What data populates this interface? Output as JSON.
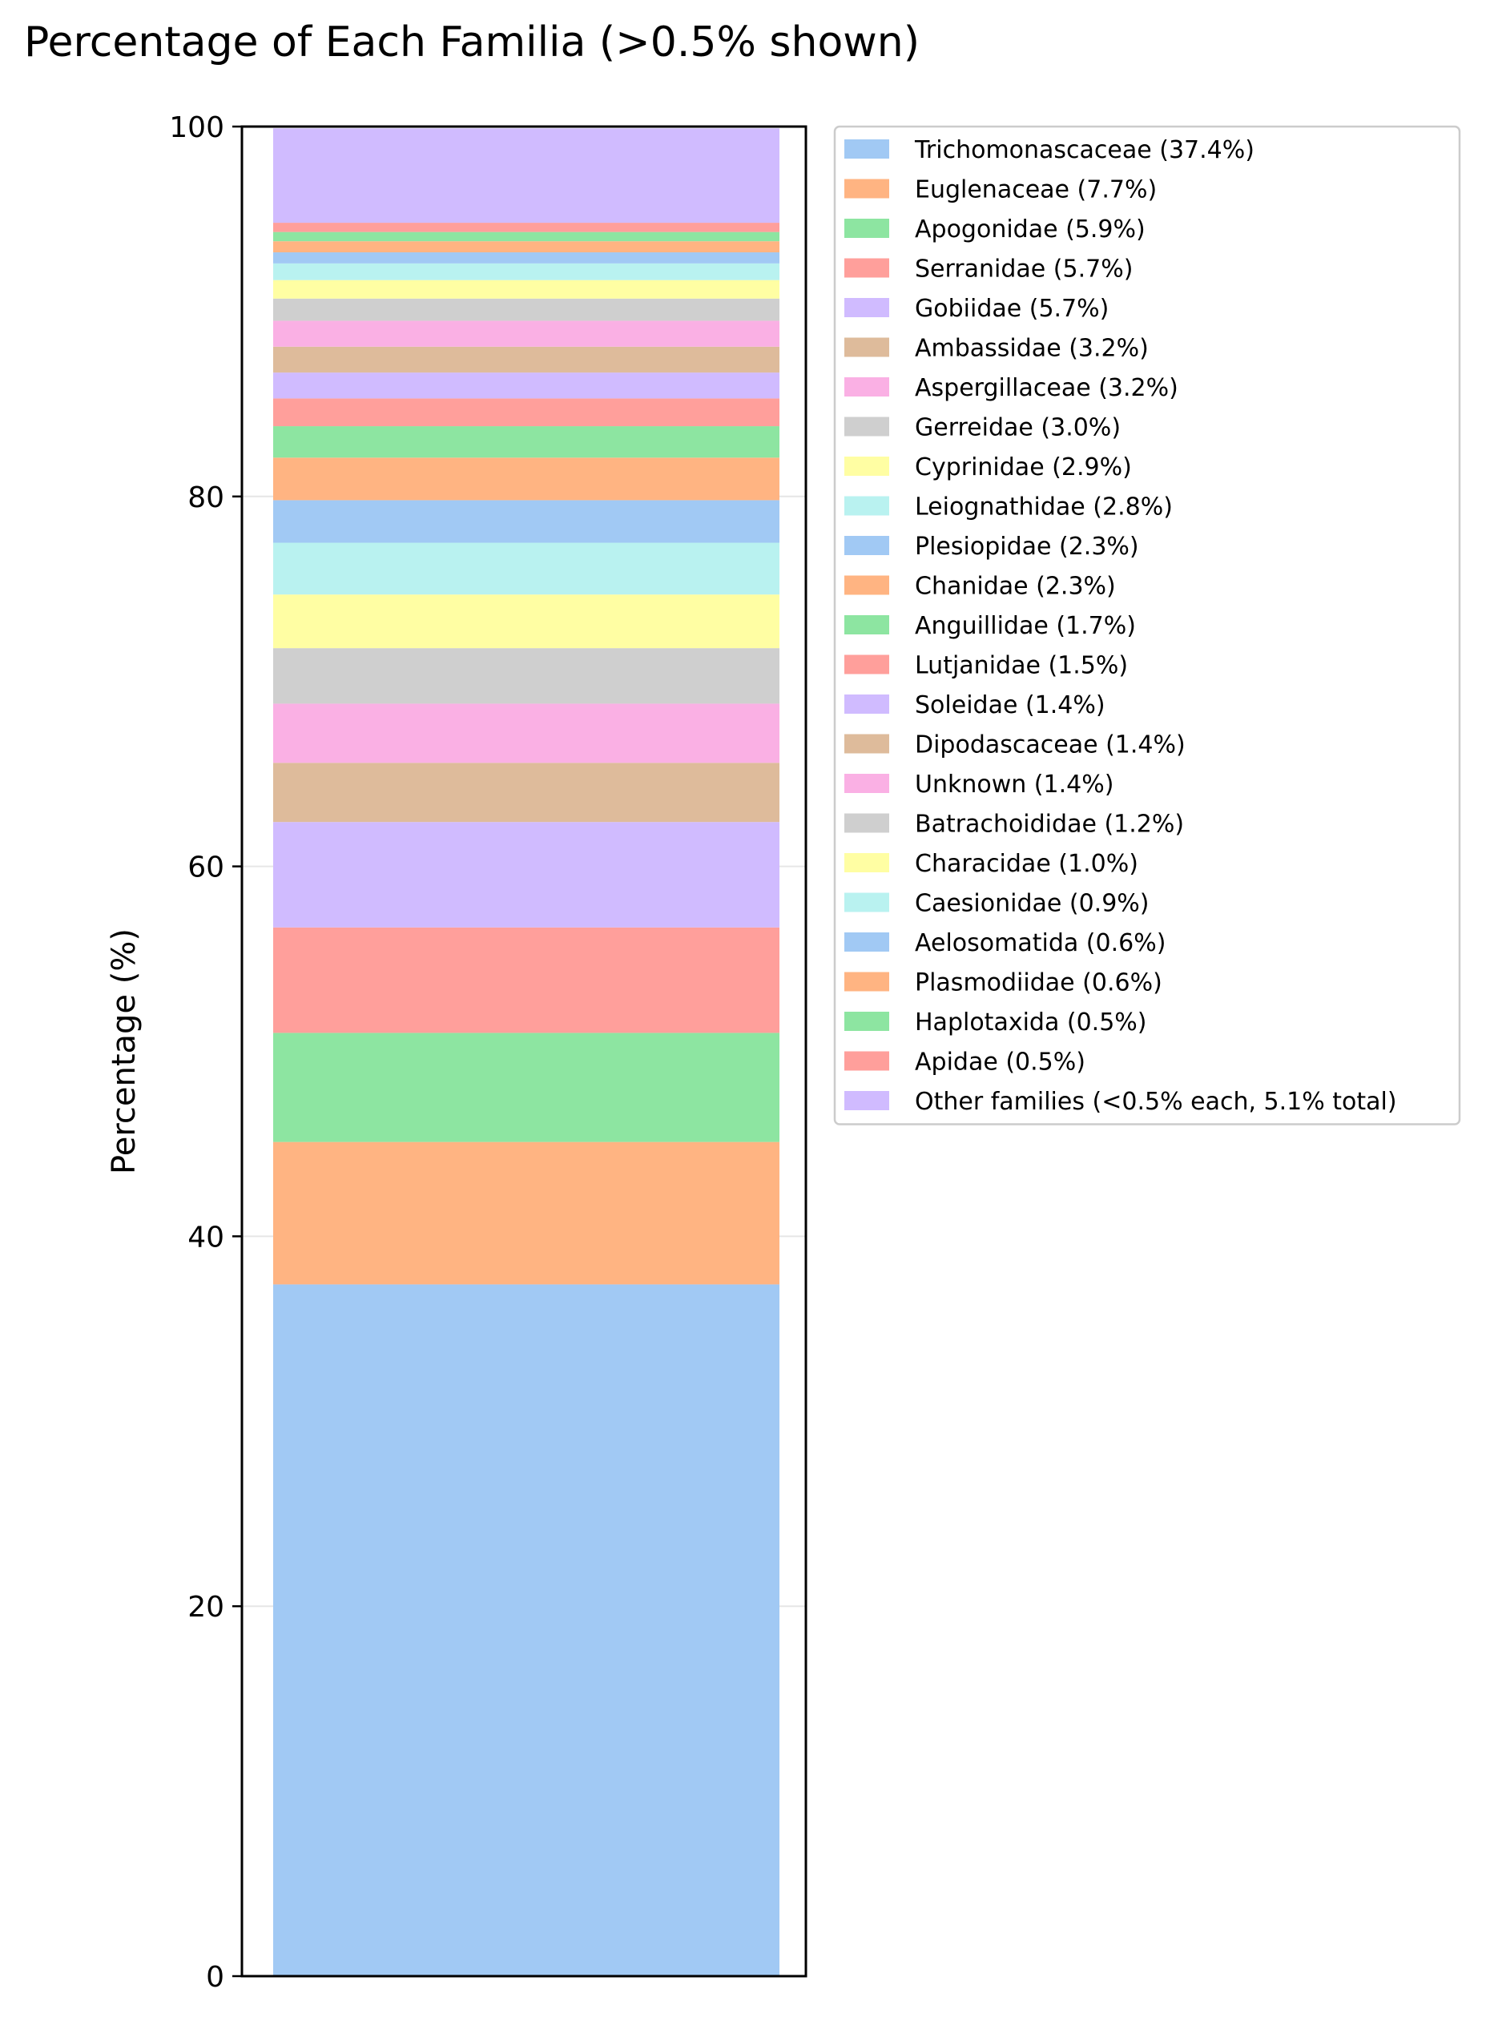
{
  "chart_data": {
    "type": "bar",
    "stacked": true,
    "title": "Percentage of Each Familia (>0.5% shown)",
    "xlabel": "",
    "ylabel": "Percentage (%)",
    "ylim": [
      0,
      100
    ],
    "yticks": [
      0,
      20,
      40,
      60,
      80,
      100
    ],
    "grid": true,
    "legend_position": "upper-left outside right",
    "series": [
      {
        "name": "Trichomonascaceae",
        "label": "Trichomonascaceae (37.4%)",
        "value": 37.4,
        "color": "#a1c9f4"
      },
      {
        "name": "Euglenaceae",
        "label": "Euglenaceae (7.7%)",
        "value": 7.7,
        "color": "#ffb482"
      },
      {
        "name": "Apogonidae",
        "label": "Apogonidae (5.9%)",
        "value": 5.9,
        "color": "#8de5a1"
      },
      {
        "name": "Serranidae",
        "label": "Serranidae (5.7%)",
        "value": 5.7,
        "color": "#ff9f9b"
      },
      {
        "name": "Gobiidae",
        "label": "Gobiidae (5.7%)",
        "value": 5.7,
        "color": "#d0bbff"
      },
      {
        "name": "Ambassidae",
        "label": "Ambassidae (3.2%)",
        "value": 3.2,
        "color": "#debb9b"
      },
      {
        "name": "Aspergillaceae",
        "label": "Aspergillaceae (3.2%)",
        "value": 3.2,
        "color": "#fab0e4"
      },
      {
        "name": "Gerreidae",
        "label": "Gerreidae (3.0%)",
        "value": 3.0,
        "color": "#cfcfcf"
      },
      {
        "name": "Cyprinidae",
        "label": "Cyprinidae (2.9%)",
        "value": 2.9,
        "color": "#fffea3"
      },
      {
        "name": "Leiognathidae",
        "label": "Leiognathidae (2.8%)",
        "value": 2.8,
        "color": "#b9f2f0"
      },
      {
        "name": "Plesiopidae",
        "label": "Plesiopidae (2.3%)",
        "value": 2.3,
        "color": "#a1c9f4"
      },
      {
        "name": "Chanidae",
        "label": "Chanidae (2.3%)",
        "value": 2.3,
        "color": "#ffb482"
      },
      {
        "name": "Anguillidae",
        "label": "Anguillidae (1.7%)",
        "value": 1.7,
        "color": "#8de5a1"
      },
      {
        "name": "Lutjanidae",
        "label": "Lutjanidae (1.5%)",
        "value": 1.5,
        "color": "#ff9f9b"
      },
      {
        "name": "Soleidae",
        "label": "Soleidae (1.4%)",
        "value": 1.4,
        "color": "#d0bbff"
      },
      {
        "name": "Dipodascaceae",
        "label": "Dipodascaceae (1.4%)",
        "value": 1.4,
        "color": "#debb9b"
      },
      {
        "name": "Unknown",
        "label": "Unknown (1.4%)",
        "value": 1.4,
        "color": "#fab0e4"
      },
      {
        "name": "Batrachoididae",
        "label": "Batrachoididae (1.2%)",
        "value": 1.2,
        "color": "#cfcfcf"
      },
      {
        "name": "Characidae",
        "label": "Characidae (1.0%)",
        "value": 1.0,
        "color": "#fffea3"
      },
      {
        "name": "Caesionidae",
        "label": "Caesionidae (0.9%)",
        "value": 0.9,
        "color": "#b9f2f0"
      },
      {
        "name": "Aelosomatida",
        "label": "Aelosomatida (0.6%)",
        "value": 0.6,
        "color": "#a1c9f4"
      },
      {
        "name": "Plasmodiidae",
        "label": "Plasmodiidae (0.6%)",
        "value": 0.6,
        "color": "#ffb482"
      },
      {
        "name": "Haplotaxida",
        "label": "Haplotaxida (0.5%)",
        "value": 0.5,
        "color": "#8de5a1"
      },
      {
        "name": "Apidae",
        "label": "Apidae (0.5%)",
        "value": 0.5,
        "color": "#ff9f9b"
      },
      {
        "name": "Other families",
        "label": "Other families (<0.5% each, 5.1% total)",
        "value": 5.1,
        "color": "#d0bbff"
      }
    ]
  }
}
